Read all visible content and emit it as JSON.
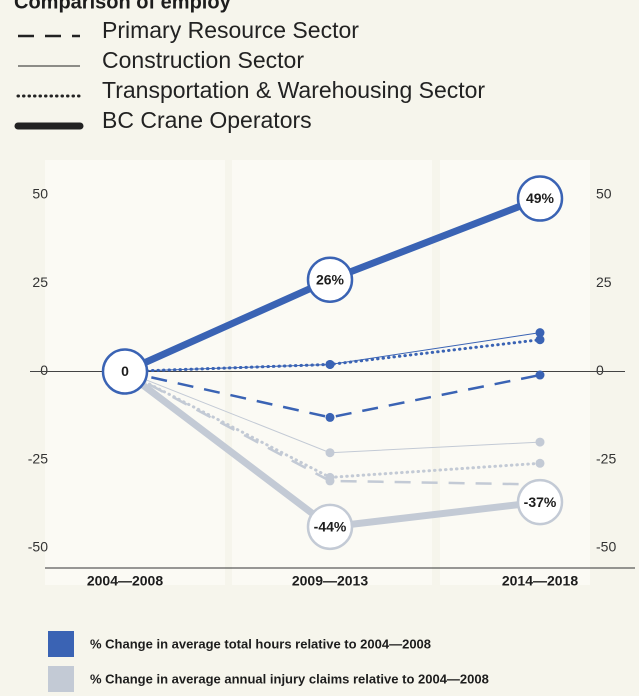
{
  "chart_data": {
    "type": "line",
    "title": "Comparison of employ",
    "categories": [
      "2004—2008",
      "2009—2013",
      "2014—2018"
    ],
    "ylim": [
      -50,
      50
    ],
    "yticks": [
      50,
      25,
      0,
      -25,
      -50
    ],
    "sectors": [
      {
        "name": "Primary Resource Sector",
        "style": "dashed"
      },
      {
        "name": "Construction Sector",
        "style": "thin"
      },
      {
        "name": "Transportation & Warehousing Sector",
        "style": "dotted"
      },
      {
        "name": "BC Crane Operators",
        "style": "thick"
      }
    ],
    "series": [
      {
        "name": "% Change in average total hours relative to 2004—2008",
        "color": "#3a63b4",
        "lines": [
          {
            "style": "dashed",
            "values": [
              0,
              -13,
              -1
            ]
          },
          {
            "style": "thin",
            "values": [
              0,
              2,
              11
            ]
          },
          {
            "style": "dotted",
            "values": [
              0,
              2,
              9
            ]
          },
          {
            "style": "thick",
            "values": [
              0,
              26,
              49
            ],
            "value_labels": [
              "0",
              "26%",
              "49%"
            ]
          }
        ]
      },
      {
        "name": "% Change in average  annual injury claims relative to 2004—2008",
        "color": "#c3cad5",
        "lines": [
          {
            "style": "dashed",
            "values": [
              0,
              -31,
              -32
            ]
          },
          {
            "style": "thin",
            "values": [
              0,
              -23,
              -20
            ]
          },
          {
            "style": "dotted",
            "values": [
              0,
              -30,
              -26
            ]
          },
          {
            "style": "thick",
            "values": [
              0,
              -44,
              -37
            ],
            "value_labels": [
              null,
              "-44%",
              "-37%"
            ]
          }
        ]
      }
    ]
  }
}
